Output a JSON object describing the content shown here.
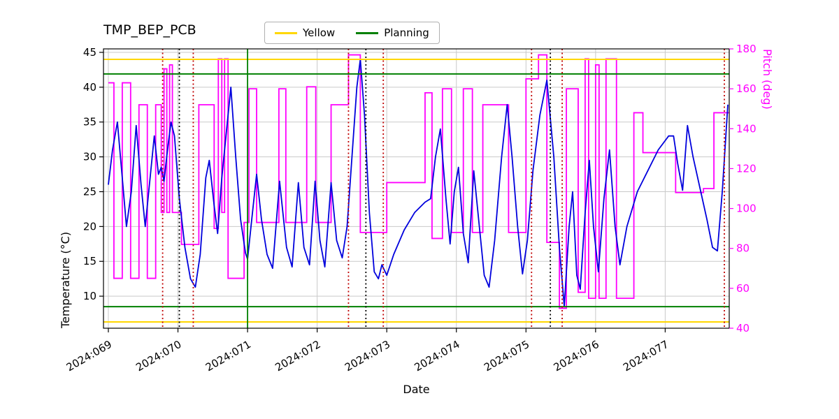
{
  "chart_data": {
    "type": "line",
    "title": "TMP_BEP_PCB",
    "xlabel": "Date",
    "ylabel_left": "Temperature (°C)",
    "ylabel_right": "Pitch (deg)",
    "xlim": [
      68.93,
      77.92
    ],
    "ylim_left": [
      5.4,
      45.5
    ],
    "ylim_right": [
      40,
      180
    ],
    "x_ticks": [
      69,
      70,
      71,
      72,
      73,
      74,
      75,
      76,
      77
    ],
    "x_tick_labels": [
      "2024:069",
      "2024:070",
      "2024:071",
      "2024:072",
      "2024:073",
      "2024:074",
      "2024:075",
      "2024:076",
      "2024:077"
    ],
    "y_ticks_left": [
      10,
      15,
      20,
      25,
      30,
      35,
      40,
      45
    ],
    "y_ticks_right": [
      40,
      60,
      80,
      100,
      120,
      140,
      160,
      180
    ],
    "grid": true,
    "colors": {
      "grid": "#c9c9c9",
      "border": "#000000",
      "temperature": "#0000dd",
      "pitch": "#ff00ff",
      "yellow_limit": "#ffd700",
      "planning_limit": "#008000",
      "red_event": "#c00000",
      "black_event": "#000000",
      "right_axis": "#ff00ff"
    },
    "legend": {
      "items": [
        {
          "label": "Yellow",
          "color": "#ffd700"
        },
        {
          "label": "Planning",
          "color": "#008000"
        }
      ]
    },
    "h_lines": [
      {
        "y": 44.0,
        "color": "#ffd700",
        "name": "yellow-upper-limit"
      },
      {
        "y": 6.3,
        "color": "#ffd700",
        "name": "yellow-lower-limit"
      },
      {
        "y": 41.9,
        "color": "#008000",
        "name": "planning-upper-limit"
      },
      {
        "y": 8.5,
        "color": "#008000",
        "name": "planning-lower-limit"
      }
    ],
    "v_lines": [
      {
        "x": 69.78,
        "color": "#c00000",
        "style": "dotted"
      },
      {
        "x": 70.02,
        "color": "#000000",
        "style": "dotted"
      },
      {
        "x": 70.22,
        "color": "#c00000",
        "style": "dotted"
      },
      {
        "x": 71.0,
        "color": "#008000",
        "style": "solid"
      },
      {
        "x": 72.45,
        "color": "#c00000",
        "style": "dotted"
      },
      {
        "x": 72.7,
        "color": "#000000",
        "style": "dotted"
      },
      {
        "x": 72.95,
        "color": "#c00000",
        "style": "dotted"
      },
      {
        "x": 75.08,
        "color": "#c00000",
        "style": "dotted"
      },
      {
        "x": 75.35,
        "color": "#000000",
        "style": "dotted"
      },
      {
        "x": 75.52,
        "color": "#c00000",
        "style": "dotted"
      },
      {
        "x": 77.85,
        "color": "#c00000",
        "style": "dotted"
      }
    ],
    "series": [
      {
        "name": "Temperature",
        "axis": "left",
        "color": "#0000dd",
        "style": "linear",
        "points": [
          [
            69.0,
            26
          ],
          [
            69.06,
            31
          ],
          [
            69.13,
            35
          ],
          [
            69.2,
            27
          ],
          [
            69.26,
            20
          ],
          [
            69.33,
            25
          ],
          [
            69.4,
            34.5
          ],
          [
            69.47,
            26
          ],
          [
            69.53,
            20
          ],
          [
            69.6,
            27
          ],
          [
            69.66,
            33
          ],
          [
            69.72,
            27.5
          ],
          [
            69.76,
            28.5
          ],
          [
            69.8,
            26.5
          ],
          [
            69.85,
            31
          ],
          [
            69.9,
            35
          ],
          [
            69.95,
            33
          ],
          [
            70.02,
            24
          ],
          [
            70.1,
            17
          ],
          [
            70.18,
            12.5
          ],
          [
            70.25,
            11.3
          ],
          [
            70.32,
            16
          ],
          [
            70.4,
            27
          ],
          [
            70.45,
            29.5
          ],
          [
            70.52,
            23
          ],
          [
            70.57,
            19
          ],
          [
            70.63,
            27
          ],
          [
            70.7,
            34
          ],
          [
            70.76,
            40
          ],
          [
            70.83,
            30
          ],
          [
            70.9,
            21
          ],
          [
            70.97,
            16.2
          ],
          [
            71.0,
            15.3
          ],
          [
            71.06,
            21
          ],
          [
            71.13,
            27.5
          ],
          [
            71.2,
            21
          ],
          [
            71.28,
            16
          ],
          [
            71.36,
            14
          ],
          [
            71.46,
            26.5
          ],
          [
            71.56,
            17
          ],
          [
            71.64,
            14.2
          ],
          [
            71.73,
            26.3
          ],
          [
            71.81,
            17
          ],
          [
            71.89,
            14.5
          ],
          [
            71.97,
            26.5
          ],
          [
            72.04,
            18
          ],
          [
            72.11,
            14.2
          ],
          [
            72.2,
            26.3
          ],
          [
            72.28,
            18
          ],
          [
            72.36,
            15.5
          ],
          [
            72.43,
            20
          ],
          [
            72.5,
            30
          ],
          [
            72.57,
            40
          ],
          [
            72.62,
            44
          ],
          [
            72.68,
            36
          ],
          [
            72.75,
            22
          ],
          [
            72.82,
            13.5
          ],
          [
            72.88,
            12.5
          ],
          [
            72.93,
            14.5
          ],
          [
            73.0,
            13
          ],
          [
            73.1,
            16
          ],
          [
            73.25,
            19.5
          ],
          [
            73.4,
            22
          ],
          [
            73.55,
            23.5
          ],
          [
            73.63,
            24
          ],
          [
            73.7,
            30
          ],
          [
            73.77,
            34
          ],
          [
            73.85,
            24
          ],
          [
            73.91,
            17.5
          ],
          [
            73.97,
            25
          ],
          [
            74.03,
            28.5
          ],
          [
            74.1,
            19
          ],
          [
            74.17,
            14.8
          ],
          [
            74.25,
            28
          ],
          [
            74.33,
            20
          ],
          [
            74.4,
            13
          ],
          [
            74.47,
            11.3
          ],
          [
            74.55,
            18
          ],
          [
            74.65,
            30
          ],
          [
            74.73,
            37.5
          ],
          [
            74.8,
            30
          ],
          [
            74.88,
            20
          ],
          [
            74.95,
            13.2
          ],
          [
            75.02,
            18
          ],
          [
            75.1,
            28
          ],
          [
            75.2,
            36
          ],
          [
            75.3,
            41
          ],
          [
            75.4,
            30
          ],
          [
            75.48,
            17
          ],
          [
            75.55,
            8.5
          ],
          [
            75.62,
            20
          ],
          [
            75.67,
            25
          ],
          [
            75.73,
            13
          ],
          [
            75.78,
            11
          ],
          [
            75.85,
            22
          ],
          [
            75.91,
            29.5
          ],
          [
            75.97,
            20
          ],
          [
            76.04,
            13.5
          ],
          [
            76.12,
            24
          ],
          [
            76.2,
            31
          ],
          [
            76.28,
            20
          ],
          [
            76.35,
            14.5
          ],
          [
            76.45,
            20
          ],
          [
            76.6,
            25
          ],
          [
            76.75,
            28
          ],
          [
            76.9,
            31
          ],
          [
            77.05,
            33
          ],
          [
            77.12,
            33
          ],
          [
            77.18,
            29
          ],
          [
            77.25,
            25.2
          ],
          [
            77.32,
            34.5
          ],
          [
            77.4,
            30
          ],
          [
            77.5,
            25.5
          ],
          [
            77.6,
            21
          ],
          [
            77.68,
            17
          ],
          [
            77.75,
            16.5
          ],
          [
            77.82,
            25
          ],
          [
            77.9,
            37.5
          ]
        ]
      },
      {
        "name": "Pitch",
        "axis": "right",
        "color": "#ff00ff",
        "style": "step",
        "points": [
          [
            69.0,
            163
          ],
          [
            69.08,
            65
          ],
          [
            69.2,
            163
          ],
          [
            69.32,
            65
          ],
          [
            69.44,
            152
          ],
          [
            69.56,
            65
          ],
          [
            69.68,
            152
          ],
          [
            69.76,
            98
          ],
          [
            69.8,
            170
          ],
          [
            69.84,
            98
          ],
          [
            69.88,
            172
          ],
          [
            69.92,
            98
          ],
          [
            70.05,
            82
          ],
          [
            70.3,
            152
          ],
          [
            70.52,
            90
          ],
          [
            70.58,
            175
          ],
          [
            70.63,
            98
          ],
          [
            70.67,
            175
          ],
          [
            70.72,
            65
          ],
          [
            70.95,
            93
          ],
          [
            71.02,
            160
          ],
          [
            71.13,
            93
          ],
          [
            71.45,
            160
          ],
          [
            71.55,
            93
          ],
          [
            71.85,
            161
          ],
          [
            71.98,
            93
          ],
          [
            72.2,
            152
          ],
          [
            72.45,
            177
          ],
          [
            72.62,
            88
          ],
          [
            73.0,
            113
          ],
          [
            73.55,
            158
          ],
          [
            73.65,
            85
          ],
          [
            73.8,
            160
          ],
          [
            73.93,
            88
          ],
          [
            74.1,
            160
          ],
          [
            74.23,
            88
          ],
          [
            74.38,
            152
          ],
          [
            74.75,
            88
          ],
          [
            75.0,
            165
          ],
          [
            75.18,
            177
          ],
          [
            75.3,
            83
          ],
          [
            75.48,
            50
          ],
          [
            75.58,
            160
          ],
          [
            75.75,
            58
          ],
          [
            75.85,
            175
          ],
          [
            75.9,
            55
          ],
          [
            76.0,
            172
          ],
          [
            76.05,
            55
          ],
          [
            76.15,
            175
          ],
          [
            76.3,
            55
          ],
          [
            76.55,
            148
          ],
          [
            76.68,
            128
          ],
          [
            77.15,
            108
          ],
          [
            77.55,
            110
          ],
          [
            77.7,
            148
          ],
          [
            77.92,
            148
          ]
        ]
      }
    ]
  }
}
